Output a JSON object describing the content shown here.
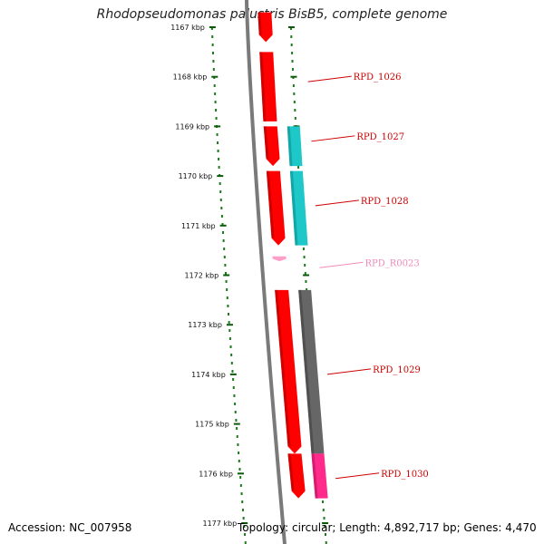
{
  "title": "Rhodopseudomonas palustris BisB5, complete genome",
  "footer": {
    "accession": "Accession: NC_007958",
    "topology": "Topology: circular; Length: 4,892,717 bp; Genes: 4,470"
  },
  "colors": {
    "backbone": "#7a7a7a",
    "dots": "#1e7a1e",
    "ticks": "#0a5a0a",
    "cds": "#ff0000",
    "cds_dark": "#a80000",
    "cyan": "#1fc8c8",
    "cyan_dark": "#0a8a8a",
    "gray": "#666666",
    "gray_dark": "#3d3d3d",
    "magenta": "#ff2a8a",
    "magenta_dark": "#b0105a",
    "rna": "#ff9ec8",
    "label_red": "#cc0000",
    "label_pink": "#ee8ab8"
  },
  "ticks": [
    {
      "kbp": 1167,
      "label": "1167 kbp"
    },
    {
      "kbp": 1168,
      "label": "1168 kbp"
    },
    {
      "kbp": 1169,
      "label": "1169 kbp"
    },
    {
      "kbp": 1170,
      "label": "1170 kbp"
    },
    {
      "kbp": 1171,
      "label": "1171 kbp"
    },
    {
      "kbp": 1172,
      "label": "1172 kbp"
    },
    {
      "kbp": 1173,
      "label": "1173 kbp"
    },
    {
      "kbp": 1174,
      "label": "1174 kbp"
    },
    {
      "kbp": 1175,
      "label": "1175 kbp"
    },
    {
      "kbp": 1176,
      "label": "1176 kbp"
    },
    {
      "kbp": 1177,
      "label": "1177 kbp"
    }
  ],
  "features": [
    {
      "name": "cds-a",
      "track": 0,
      "start": 1166.7,
      "end": 1167.3,
      "color": "cds",
      "dark": "cds_dark",
      "arrow": "down"
    },
    {
      "name": "cds-b",
      "track": 0,
      "start": 1167.5,
      "end": 1168.9,
      "color": "cds",
      "dark": "cds_dark",
      "arrow": "none"
    },
    {
      "name": "cds-c",
      "track": 0,
      "start": 1169.0,
      "end": 1169.8,
      "color": "cds",
      "dark": "cds_dark",
      "arrow": "down"
    },
    {
      "name": "cds-d",
      "track": 1,
      "start": 1169.0,
      "end": 1169.8,
      "color": "cyan",
      "dark": "cyan_dark",
      "arrow": "none"
    },
    {
      "name": "cds-e",
      "track": 0,
      "start": 1169.9,
      "end": 1171.4,
      "color": "cds",
      "dark": "cds_dark",
      "arrow": "down"
    },
    {
      "name": "cds-f",
      "track": 1,
      "start": 1169.9,
      "end": 1171.4,
      "color": "cyan",
      "dark": "cyan_dark",
      "arrow": "none"
    },
    {
      "name": "rna-a",
      "track": 0,
      "start": 1171.62,
      "end": 1171.72,
      "color": "rna",
      "dark": "rna",
      "arrow": "down"
    },
    {
      "name": "cds-g",
      "track": 0,
      "start": 1172.3,
      "end": 1175.6,
      "color": "cds",
      "dark": "cds_dark",
      "arrow": "down"
    },
    {
      "name": "cds-h",
      "track": 1,
      "start": 1172.3,
      "end": 1175.6,
      "color": "gray",
      "dark": "gray_dark",
      "arrow": "none"
    },
    {
      "name": "cds-i",
      "track": 0,
      "start": 1175.6,
      "end": 1176.5,
      "color": "cds",
      "dark": "cds_dark",
      "arrow": "down"
    },
    {
      "name": "cds-j",
      "track": 1,
      "start": 1175.6,
      "end": 1176.5,
      "color": "magenta",
      "dark": "magenta_dark",
      "arrow": "none"
    }
  ],
  "gene_labels": [
    {
      "text": "RPD_1026",
      "kbp": 1168.1,
      "color": "label_red"
    },
    {
      "text": "RPD_1027",
      "kbp": 1169.3,
      "color": "label_red"
    },
    {
      "text": "RPD_1028",
      "kbp": 1170.6,
      "color": "label_red"
    },
    {
      "text": "RPD_R0023",
      "kbp": 1171.85,
      "color": "label_pink"
    },
    {
      "text": "RPD_1029",
      "kbp": 1174.0,
      "color": "label_red"
    },
    {
      "text": "RPD_1030",
      "kbp": 1176.1,
      "color": "label_red"
    }
  ]
}
